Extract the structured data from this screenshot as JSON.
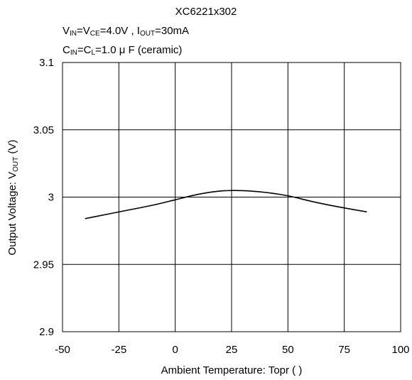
{
  "title": "XC6221x302",
  "conditions": {
    "line1": {
      "v": "V",
      "in_sub": "IN",
      "eq1": "=V",
      "ce_sub": "CE",
      "val1": "=4.0V , I",
      "out_sub": "OUT",
      "val2": "=30mA"
    },
    "line2": {
      "c": "C",
      "in_sub": "IN",
      "eq1": "=C",
      "l_sub": "L",
      "val": "=1.0 μ F (ceramic)"
    }
  },
  "chart_data": {
    "type": "line",
    "title": "XC6221x302",
    "xlabel": "Ambient Temperature: Topr (   )",
    "ylabel": {
      "main": "Output Voltage: V",
      "sub": "OUT",
      "unit": " (V)"
    },
    "xlim": [
      -50,
      100
    ],
    "ylim": [
      2.9,
      3.1
    ],
    "xticks": [
      -50,
      -25,
      0,
      25,
      50,
      75,
      100
    ],
    "xtick_labels": [
      "-50",
      "-25",
      "0",
      "25",
      "50",
      "75",
      "100"
    ],
    "yticks": [
      3.1,
      3.05,
      3.0,
      2.95,
      2.9
    ],
    "ytick_labels": [
      "3.1",
      "3.05",
      "3",
      "2.95",
      "2.9"
    ],
    "grid": true,
    "series": [
      {
        "x": [
          -40,
          -25,
          -10,
          0,
          10,
          20,
          30,
          40,
          50,
          60,
          70,
          85
        ],
        "y": [
          2.984,
          2.989,
          2.994,
          2.998,
          3.002,
          3.0045,
          3.0048,
          3.0035,
          3.001,
          2.997,
          2.9935,
          2.989
        ]
      }
    ]
  }
}
